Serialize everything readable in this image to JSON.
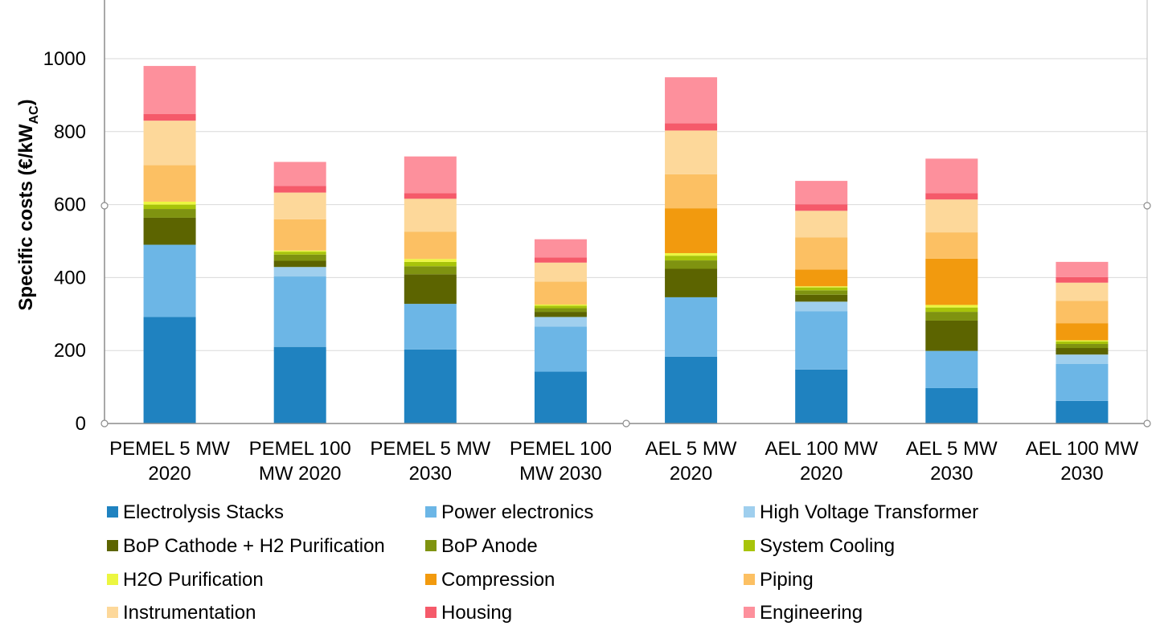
{
  "chart_data": {
    "type": "bar",
    "stacked": true,
    "title": "",
    "xlabel": "",
    "ylabel": {
      "main": "Specific costs (€/kW",
      "subscript": "AC",
      "close": ")"
    },
    "ylim": [
      0,
      1000
    ],
    "yticks": [
      0,
      200,
      400,
      600,
      800,
      1000
    ],
    "grid": true,
    "legend_position": "bottom",
    "categories": [
      [
        "PEMEL 5 MW",
        "2020"
      ],
      [
        "PEMEL 100",
        "MW 2020"
      ],
      [
        "PEMEL 5 MW",
        "2030"
      ],
      [
        "PEMEL 100",
        "MW 2030"
      ],
      [
        "AEL 5 MW",
        "2020"
      ],
      [
        "AEL 100 MW",
        "2020"
      ],
      [
        "AEL 5 MW",
        "2030"
      ],
      [
        "AEL 100 MW",
        "2030"
      ]
    ],
    "series": [
      {
        "name": "Electrolysis Stacks",
        "color": "#1f82c0",
        "values": [
          292,
          210,
          203,
          142,
          183,
          148,
          97,
          62
        ]
      },
      {
        "name": "Power electronics",
        "color": "#6cb6e6",
        "values": [
          198,
          193,
          125,
          124,
          163,
          160,
          102,
          101
        ]
      },
      {
        "name": "High Voltage Transformer",
        "color": "#9fcfee",
        "values": [
          0,
          26,
          0,
          26,
          0,
          26,
          0,
          26
        ]
      },
      {
        "name": "BoP Cathode + H2 Purification",
        "color": "#5c6400",
        "values": [
          74,
          17,
          81,
          14,
          78,
          19,
          83,
          18
        ]
      },
      {
        "name": "BoP Anode",
        "color": "#7f9310",
        "values": [
          24,
          17,
          22,
          10,
          23,
          12,
          24,
          11
        ]
      },
      {
        "name": "System Cooling",
        "color": "#a8c40a",
        "values": [
          12,
          8,
          12,
          7,
          13,
          8,
          12,
          7
        ]
      },
      {
        "name": "H2O Purification",
        "color": "#ecf640",
        "values": [
          8,
          3,
          8,
          3,
          7,
          3,
          7,
          3
        ]
      },
      {
        "name": "Compression",
        "color": "#f29a0e",
        "values": [
          0,
          0,
          0,
          0,
          123,
          46,
          127,
          47
        ]
      },
      {
        "name": "Piping",
        "color": "#fcc063",
        "values": [
          100,
          86,
          75,
          63,
          93,
          88,
          72,
          61
        ]
      },
      {
        "name": "Instrumentation",
        "color": "#fdd89a",
        "values": [
          122,
          73,
          90,
          52,
          120,
          73,
          90,
          50
        ]
      },
      {
        "name": "Housing",
        "color": "#f55a6a",
        "values": [
          18,
          18,
          15,
          14,
          20,
          18,
          17,
          15
        ]
      },
      {
        "name": "Engineering",
        "color": "#fd909c",
        "values": [
          132,
          66,
          101,
          50,
          126,
          64,
          95,
          42
        ]
      }
    ]
  }
}
